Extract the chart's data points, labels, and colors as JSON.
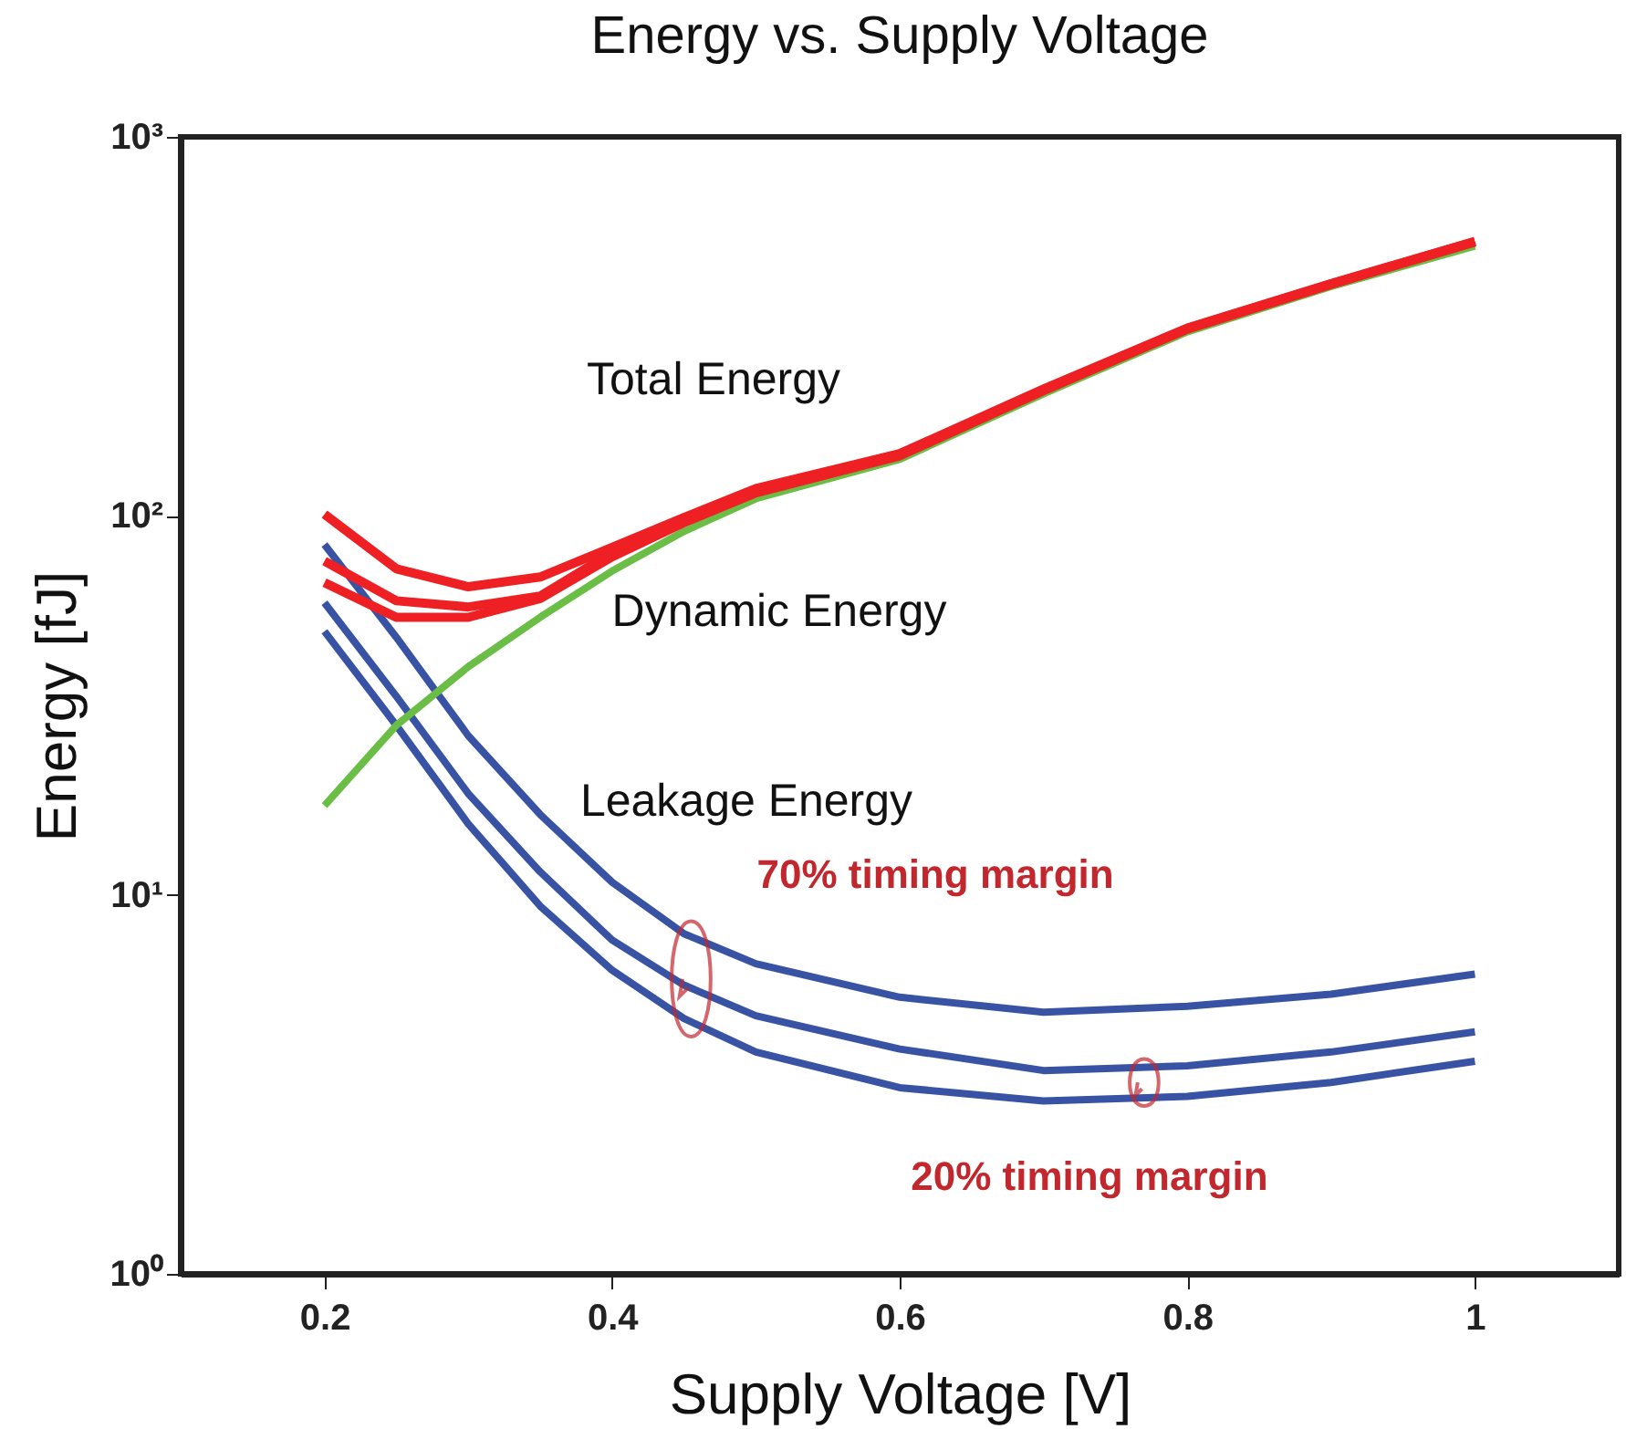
{
  "chart_data": {
    "type": "line",
    "title": "Energy vs. Supply Voltage",
    "xlabel": "Supply Voltage [V]",
    "ylabel": "Energy [fJ]",
    "x": [
      0.2,
      0.25,
      0.3,
      0.35,
      0.4,
      0.45,
      0.5,
      0.6,
      0.7,
      0.8,
      0.9,
      1.0
    ],
    "series": [
      {
        "color": "#3953a4",
        "values": [
          84,
          47.8,
          26.3,
          16.3,
          10.8,
          7.9,
          6.58,
          5.37,
          4.9,
          5.08,
          5.47,
          6.18
        ]
      },
      {
        "color": "#3953a4",
        "values": [
          59,
          33.4,
          18.5,
          11.5,
          7.6,
          5.78,
          4.8,
          3.92,
          3.44,
          3.54,
          3.85,
          4.35
        ]
      },
      {
        "color": "#3953a4",
        "values": [
          49.6,
          28,
          15.4,
          9.34,
          6.33,
          4.72,
          3.85,
          3.1,
          2.86,
          2.94,
          3.2,
          3.64
        ]
      },
      {
        "color": "#6abd45",
        "values": [
          17.2,
          28,
          40,
          54,
          71.5,
          91,
          111,
          141,
          210,
          306,
          403,
          515
        ]
      },
      {
        "color": "#ee2024",
        "values": [
          101,
          72.5,
          65,
          69,
          82.6,
          99,
          118,
          146,
          216,
          313,
          410,
          530
        ]
      },
      {
        "color": "#ee2024",
        "values": [
          76,
          59.7,
          57.5,
          61.4,
          80,
          97,
          116,
          145,
          215,
          312,
          409,
          529
        ]
      },
      {
        "color": "#ee2024",
        "values": [
          66.7,
          54,
          54,
          60.5,
          78,
          96,
          115,
          144,
          214,
          311,
          408,
          528
        ]
      }
    ],
    "xlim": [
      0.1,
      1.1
    ],
    "ylim": [
      1,
      1000
    ],
    "log": "y",
    "xticks": [
      0.2,
      0.4,
      0.6,
      0.8,
      1
    ],
    "yticks": [
      {
        "value": 1,
        "label": "10⁰"
      },
      {
        "value": 10,
        "label": "10¹"
      },
      {
        "value": 100,
        "label": "10²"
      },
      {
        "value": 1000,
        "label": "10³"
      }
    ],
    "grid": false,
    "annotations": [
      "Total Energy",
      "Dynamic Energy",
      "Leakage Energy",
      {
        "text": "70% timing margin",
        "x": 0.455,
        "y": 6
      },
      {
        "text": "20% timing margin",
        "x": 0.77,
        "y": 3.2
      }
    ]
  }
}
